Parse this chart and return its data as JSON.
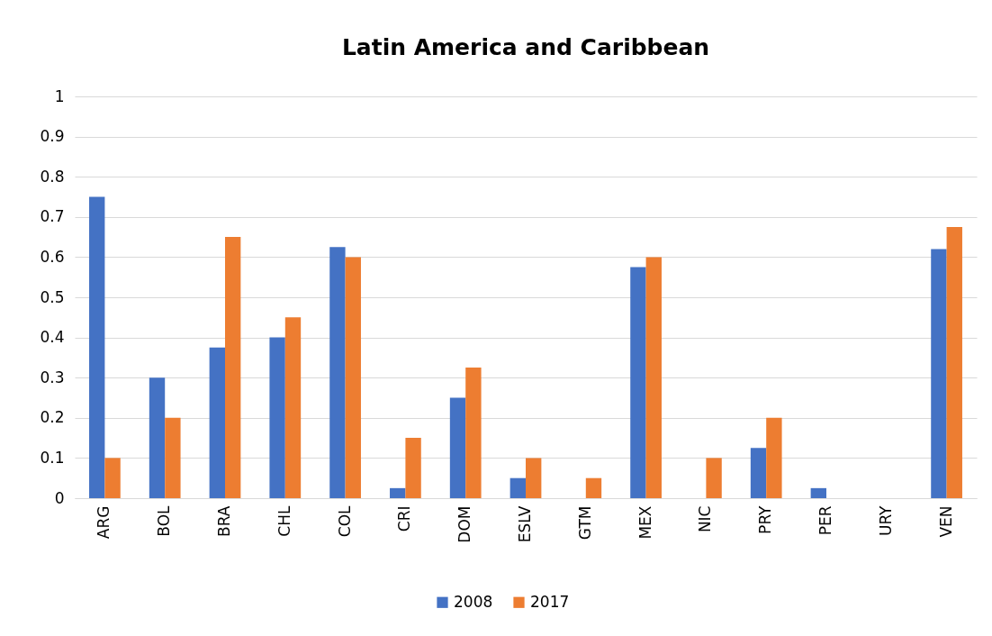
{
  "chart_data": {
    "type": "bar",
    "title": "Latin America and Caribbean",
    "categories": [
      "ARG",
      "BOL",
      "BRA",
      "CHL",
      "COL",
      "CRI",
      "DOM",
      "ESLV",
      "GTM",
      "MEX",
      "NIC",
      "PRY",
      "PER",
      "URY",
      "VEN"
    ],
    "series": [
      {
        "name": "2008",
        "color": "#4472c4",
        "values": [
          0.75,
          0.3,
          0.375,
          0.4,
          0.625,
          0.025,
          0.25,
          0.05,
          0,
          0.575,
          0,
          0.125,
          0.025,
          0,
          0.62
        ]
      },
      {
        "name": "2017",
        "color": "#ed7d31",
        "values": [
          0.1,
          0.2,
          0.65,
          0.45,
          0.6,
          0.15,
          0.325,
          0.1,
          0.05,
          0.6,
          0.1,
          0.2,
          0,
          0,
          0.675
        ]
      }
    ],
    "ylim": [
      0,
      1
    ],
    "yticks": [
      0,
      0.1,
      0.2,
      0.3,
      0.4,
      0.5,
      0.6,
      0.7,
      0.8,
      0.9,
      1
    ],
    "grid": "y",
    "legend": "bottom"
  }
}
